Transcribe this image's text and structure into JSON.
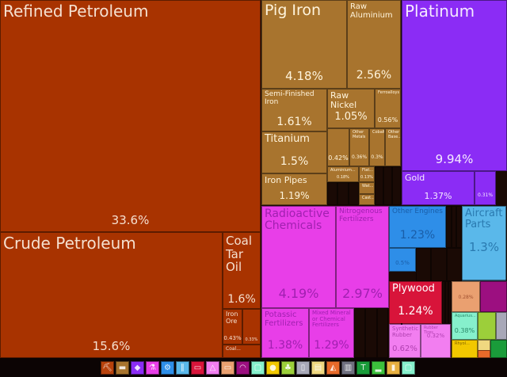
{
  "chart_data": {
    "type": "treemap",
    "title": "",
    "items": [
      {
        "name": "Refined Petroleum",
        "value": "33.6%",
        "color": "#a83300"
      },
      {
        "name": "Crude Petroleum",
        "value": "15.6%",
        "color": "#a83300"
      },
      {
        "name": "Coal Tar Oil",
        "value": "1.6%",
        "color": "#a83300"
      },
      {
        "name": "Iron Ore",
        "value": "0.43%",
        "color": "#a83300"
      },
      {
        "name": "",
        "value": "0.33%",
        "color": "#a83300"
      },
      {
        "name": "Coal...",
        "value": "",
        "color": "#a83300"
      },
      {
        "name": "Pig Iron",
        "value": "4.18%",
        "color": "#a8742e"
      },
      {
        "name": "Raw Aluminium",
        "value": "2.56%",
        "color": "#a8742e"
      },
      {
        "name": "Semi-Finished Iron",
        "value": "1.61%",
        "color": "#a8742e"
      },
      {
        "name": "Titanium",
        "value": "1.5%",
        "color": "#a8742e"
      },
      {
        "name": "Iron Pipes",
        "value": "1.19%",
        "color": "#a8742e"
      },
      {
        "name": "Raw Nickel",
        "value": "1.05%",
        "color": "#a8742e"
      },
      {
        "name": "Ferroalloys",
        "value": "0.56%",
        "color": "#a8742e"
      },
      {
        "name": "",
        "value": "0.42%",
        "color": "#a8742e"
      },
      {
        "name": "Other Metals",
        "value": "0.36%",
        "color": "#a8742e"
      },
      {
        "name": "Cobalt",
        "value": "0.3%",
        "color": "#a8742e"
      },
      {
        "name": "Other Base...",
        "value": "",
        "color": "#a8742e"
      },
      {
        "name": "Aluminium...",
        "value": "0.18%",
        "color": "#a8742e"
      },
      {
        "name": "Flat...",
        "value": "0.13%",
        "color": "#a8742e"
      },
      {
        "name": "Wat...",
        "value": "",
        "color": "#a8742e"
      },
      {
        "name": "Cast...",
        "value": "",
        "color": "#a8742e"
      },
      {
        "name": "Platinum",
        "value": "9.94%",
        "color": "#8b2cf5"
      },
      {
        "name": "Gold",
        "value": "1.37%",
        "color": "#8b2cf5"
      },
      {
        "name": "",
        "value": "0.31%",
        "color": "#8b2cf5"
      },
      {
        "name": "Radioactive Chemicals",
        "value": "4.19%",
        "color": "#e83ee8"
      },
      {
        "name": "Nitrogenous Fertilizers",
        "value": "2.97%",
        "color": "#e83ee8"
      },
      {
        "name": "Potassic Fertilizers",
        "value": "1.38%",
        "color": "#e83ee8"
      },
      {
        "name": "Mixed Mineral or Chemical Fertilizers",
        "value": "1.29%",
        "color": "#e83ee8"
      },
      {
        "name": "Other Engines",
        "value": "1.23%",
        "color": "#2e8ee8"
      },
      {
        "name": "",
        "value": "0.5%",
        "color": "#2e8ee8"
      },
      {
        "name": "Aircraft Parts",
        "value": "1.3%",
        "color": "#5ab8ea"
      },
      {
        "name": "Plywood",
        "value": "1.24%",
        "color": "#d8143a"
      },
      {
        "name": "Synthetic Rubber",
        "value": "0.62%",
        "color": "#f27ef0"
      },
      {
        "name": "Rubber Tires",
        "value": "0.32%",
        "color": "#f27ef0"
      },
      {
        "name": "",
        "value": "0.28%",
        "color": "#eaa070"
      },
      {
        "name": "",
        "value": "",
        "color": "#9c0f80"
      },
      {
        "name": "Aquarius...",
        "value": "0.38%",
        "color": "#86f0cc"
      },
      {
        "name": "Rhyol...",
        "value": "",
        "color": "#f2c800"
      },
      {
        "name": "",
        "value": "",
        "color": "#9ccf3a"
      },
      {
        "name": "",
        "value": "",
        "color": "#a8a8b8"
      },
      {
        "name": "",
        "value": "",
        "color": "#f0d880"
      },
      {
        "name": "",
        "value": "",
        "color": "#e86a2a"
      },
      {
        "name": "",
        "value": "",
        "color": "#1a9c3a"
      }
    ]
  },
  "legend": [
    {
      "icon": "mineral-pick-icon",
      "color": "#b8420c"
    },
    {
      "icon": "anvil-metals-icon",
      "color": "#a8742e"
    },
    {
      "icon": "diamond-icon",
      "color": "#8b2cf5"
    },
    {
      "icon": "flask-chemicals-icon",
      "color": "#e83ee8"
    },
    {
      "icon": "gear-machines-icon",
      "color": "#2e8ee8"
    },
    {
      "icon": "transport-icon",
      "color": "#5ab8ea"
    },
    {
      "icon": "wood-icon",
      "color": "#d8143a"
    },
    {
      "icon": "plastics-icon",
      "color": "#f27ef0"
    },
    {
      "icon": "sofa-misc-icon",
      "color": "#eaa070"
    },
    {
      "icon": "gauge-instruments-icon",
      "color": "#9c0f80"
    },
    {
      "icon": "stone-icon",
      "color": "#86f0cc"
    },
    {
      "icon": "animal-icon",
      "color": "#f2c800"
    },
    {
      "icon": "vegetable-icon",
      "color": "#9ccf3a"
    },
    {
      "icon": "paper-book-icon",
      "color": "#a8a8b8"
    },
    {
      "icon": "foodstuffs-icon",
      "color": "#f0d880"
    },
    {
      "icon": "hide-icon",
      "color": "#e86a2a"
    },
    {
      "icon": "art-easel-icon",
      "color": "#707080"
    },
    {
      "icon": "textiles-shirt-icon",
      "color": "#1a9c3a"
    },
    {
      "icon": "footwear-icon",
      "color": "#3cc03c"
    },
    {
      "icon": "weapons-icon",
      "color": "#e8b040"
    },
    {
      "icon": "other-icon",
      "color": "#86f0cc"
    }
  ]
}
